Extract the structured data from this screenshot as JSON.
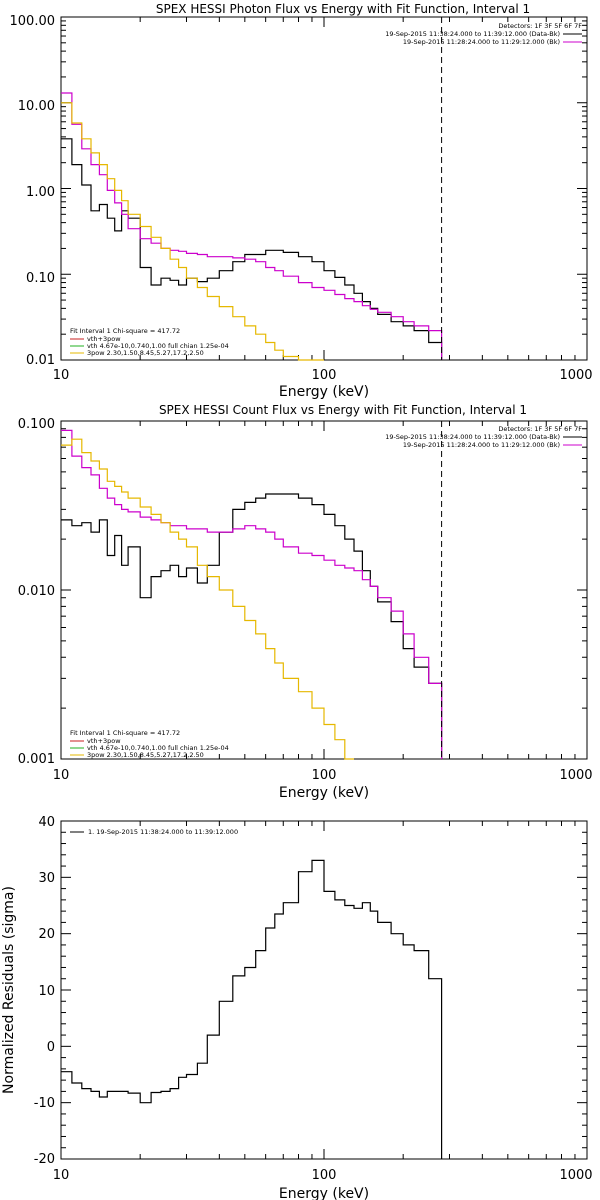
{
  "chart_data": [
    {
      "type": "line",
      "title": "SPEX HESSI Photon Flux vs Energy with Fit Function, Interval 1",
      "xlabel": "Energy (keV)",
      "ylabel": "",
      "xscale": "log",
      "yscale": "log",
      "xlim": [
        10,
        1000
      ],
      "ylim": [
        0.01,
        100
      ],
      "x_tick_labels": [
        "10",
        "100",
        "1000"
      ],
      "y_tick_labels": [
        "0.01",
        "0.10",
        "1.00",
        "10.00",
        "100.00"
      ],
      "detectors_text": "Detectors: 1F 3F 5F 6F 7F",
      "time_lines": [
        "19-Sep-2015 11:38:24.000 to 11:39:12.000 (Data-Bk)",
        "19-Sep-2015 11:28:24.000 to 11:29:12.000 (Bk)"
      ],
      "legend": {
        "placement": "bottom-left",
        "header": "Fit Interval 1   Chi-square = 417.72",
        "entries": [
          {
            "text": "vth+3pow",
            "color": "#c82020"
          },
          {
            "text": "vth 4.67e-10,0.740,1.00  full chian 1.25e-04",
            "color": "#20b020"
          },
          {
            "text": "3pow 2.30,1.50,8.45,5.27,17.2,2.50",
            "color": "#e6b800"
          }
        ]
      },
      "cutoff_energy": 280,
      "series": [
        {
          "name": "data",
          "color": "#000000",
          "bins": [
            10,
            11,
            12,
            13,
            14,
            15,
            16,
            17,
            18,
            20,
            22,
            24,
            26,
            28,
            30,
            33,
            36,
            40,
            45,
            50,
            55,
            60,
            65,
            70,
            80,
            90,
            100,
            110,
            120,
            130,
            140,
            150,
            160,
            180,
            200,
            220,
            250,
            280
          ],
          "values": [
            3.8,
            1.9,
            1.1,
            0.55,
            0.65,
            0.45,
            0.32,
            0.55,
            0.45,
            0.12,
            0.075,
            0.09,
            0.085,
            0.075,
            0.09,
            0.082,
            0.09,
            0.11,
            0.14,
            0.17,
            0.17,
            0.19,
            0.19,
            0.18,
            0.16,
            0.14,
            0.11,
            0.092,
            0.075,
            0.06,
            0.048,
            0.04,
            0.034,
            0.028,
            0.025,
            0.022,
            0.016
          ]
        },
        {
          "name": "fit",
          "color": "#cc00cc",
          "bins": [
            10,
            11,
            12,
            13,
            14,
            15,
            16,
            17,
            18,
            20,
            22,
            24,
            26,
            28,
            30,
            33,
            36,
            40,
            45,
            50,
            55,
            60,
            65,
            70,
            80,
            90,
            100,
            110,
            120,
            130,
            140,
            150,
            160,
            180,
            200,
            220,
            250,
            280
          ],
          "values": [
            13,
            5.6,
            2.9,
            1.9,
            1.45,
            0.95,
            0.68,
            0.5,
            0.34,
            0.26,
            0.23,
            0.2,
            0.19,
            0.185,
            0.175,
            0.17,
            0.16,
            0.16,
            0.155,
            0.15,
            0.14,
            0.12,
            0.11,
            0.095,
            0.08,
            0.07,
            0.065,
            0.058,
            0.052,
            0.048,
            0.043,
            0.039,
            0.036,
            0.032,
            0.028,
            0.025,
            0.022
          ]
        },
        {
          "name": "3pow",
          "color": "#e6b800",
          "bins": [
            10,
            11,
            12,
            13,
            14,
            15,
            16,
            17,
            18,
            20,
            22,
            24,
            26,
            28,
            30,
            33,
            36,
            40,
            45,
            50,
            55,
            60,
            65,
            70,
            80,
            90,
            100
          ],
          "values": [
            10,
            5.8,
            3.8,
            2.6,
            1.9,
            1.3,
            0.95,
            0.72,
            0.5,
            0.36,
            0.27,
            0.2,
            0.15,
            0.12,
            0.09,
            0.07,
            0.055,
            0.042,
            0.032,
            0.025,
            0.02,
            0.016,
            0.013,
            0.011,
            0.009,
            0.008
          ]
        }
      ]
    },
    {
      "type": "line",
      "title": "SPEX HESSI Count Flux vs Energy with Fit Function, Interval 1",
      "xlabel": "Energy (keV)",
      "ylabel": "",
      "xscale": "log",
      "yscale": "log",
      "xlim": [
        10,
        1000
      ],
      "ylim": [
        0.001,
        0.1
      ],
      "x_tick_labels": [
        "10",
        "100",
        "1000"
      ],
      "y_tick_labels": [
        "0.001",
        "0.010",
        "0.100"
      ],
      "detectors_text": "Detectors: 1F 3F 5F 6F 7F",
      "time_lines": [
        "19-Sep-2015 11:38:24.000 to 11:39:12.000 (Data-Bk)",
        "19-Sep-2015 11:28:24.000 to 11:29:12.000 (Bk)"
      ],
      "legend": {
        "placement": "bottom-left",
        "header": "Fit Interval 1   Chi-square = 417.72",
        "entries": [
          {
            "text": "vth+3pow",
            "color": "#c82020"
          },
          {
            "text": "vth 4.67e-10,0.740,1.00  full chian 1.25e-04",
            "color": "#20b020"
          },
          {
            "text": "3pow 2.30,1.50,8.45,5.27,17.2,2.50",
            "color": "#e6b800"
          }
        ]
      },
      "cutoff_energy": 280,
      "series": [
        {
          "name": "data",
          "color": "#000000",
          "bins": [
            10,
            11,
            12,
            13,
            14,
            15,
            16,
            17,
            18,
            20,
            22,
            24,
            26,
            28,
            30,
            33,
            36,
            40,
            45,
            50,
            55,
            60,
            65,
            70,
            80,
            90,
            100,
            110,
            120,
            130,
            140,
            150,
            160,
            180,
            200,
            220,
            250,
            280
          ],
          "values": [
            0.026,
            0.024,
            0.025,
            0.022,
            0.026,
            0.016,
            0.021,
            0.014,
            0.018,
            0.009,
            0.012,
            0.013,
            0.014,
            0.012,
            0.0135,
            0.011,
            0.014,
            0.022,
            0.03,
            0.033,
            0.035,
            0.037,
            0.037,
            0.037,
            0.035,
            0.032,
            0.028,
            0.024,
            0.02,
            0.017,
            0.013,
            0.0105,
            0.0085,
            0.0065,
            0.0045,
            0.0035,
            0.0028
          ]
        },
        {
          "name": "fit",
          "color": "#cc00cc",
          "bins": [
            10,
            11,
            12,
            13,
            14,
            15,
            16,
            17,
            18,
            20,
            22,
            24,
            26,
            28,
            30,
            33,
            36,
            40,
            45,
            50,
            55,
            60,
            65,
            70,
            80,
            90,
            100,
            110,
            120,
            130,
            140,
            150,
            160,
            180,
            200,
            220,
            250,
            280
          ],
          "values": [
            0.088,
            0.062,
            0.053,
            0.048,
            0.04,
            0.035,
            0.032,
            0.03,
            0.029,
            0.027,
            0.026,
            0.025,
            0.024,
            0.024,
            0.023,
            0.023,
            0.022,
            0.022,
            0.023,
            0.024,
            0.023,
            0.022,
            0.02,
            0.018,
            0.0165,
            0.016,
            0.015,
            0.014,
            0.0135,
            0.013,
            0.0115,
            0.0105,
            0.009,
            0.0075,
            0.0055,
            0.004,
            0.0028
          ]
        },
        {
          "name": "3pow",
          "color": "#e6b800",
          "bins": [
            10,
            11,
            12,
            13,
            14,
            15,
            16,
            17,
            18,
            20,
            22,
            24,
            26,
            28,
            30,
            33,
            36,
            40,
            45,
            50,
            55,
            60,
            65,
            70,
            80,
            90,
            100,
            110,
            120,
            130
          ],
          "values": [
            0.072,
            0.078,
            0.065,
            0.058,
            0.052,
            0.044,
            0.041,
            0.038,
            0.035,
            0.031,
            0.028,
            0.025,
            0.022,
            0.02,
            0.018,
            0.014,
            0.012,
            0.01,
            0.008,
            0.0066,
            0.0055,
            0.0045,
            0.0037,
            0.003,
            0.0025,
            0.002,
            0.0016,
            0.0013,
            0.001
          ]
        }
      ]
    },
    {
      "type": "line",
      "title": "",
      "xlabel": "Energy (keV)",
      "ylabel": "Normalized Residuals (sigma)",
      "xscale": "log",
      "yscale": "linear",
      "xlim": [
        10,
        1000
      ],
      "ylim": [
        -20,
        40
      ],
      "x_tick_labels": [
        "10",
        "100",
        "1000"
      ],
      "y_tick_labels": [
        "-20",
        "-10",
        "0",
        "10",
        "20",
        "30",
        "40"
      ],
      "legend": {
        "placement": "top-left",
        "entries": [
          {
            "text": "1. 19-Sep-2015 11:38:24.000 to 11:39:12.000",
            "color": "#000000"
          }
        ]
      },
      "series": [
        {
          "name": "residuals",
          "color": "#000000",
          "bins": [
            10,
            11,
            12,
            13,
            14,
            15,
            16,
            17,
            18,
            20,
            22,
            24,
            26,
            28,
            30,
            33,
            36,
            40,
            45,
            50,
            55,
            60,
            65,
            70,
            80,
            90,
            100,
            110,
            120,
            130,
            140,
            150,
            160,
            180,
            200,
            220,
            250,
            280
          ],
          "values": [
            -4.5,
            -6.5,
            -7.5,
            -8,
            -9,
            -8,
            -8,
            -8,
            -8.3,
            -10,
            -8.2,
            -8,
            -7.5,
            -5.5,
            -5,
            -3,
            2,
            8,
            12.5,
            14,
            17,
            21,
            23.5,
            25.5,
            31,
            33,
            27.5,
            26,
            25,
            24.5,
            25.5,
            24,
            22,
            20,
            18,
            17,
            12
          ]
        }
      ]
    }
  ]
}
